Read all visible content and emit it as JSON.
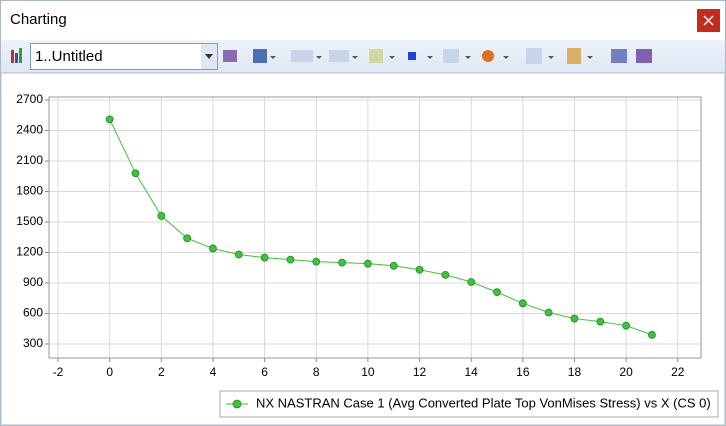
{
  "window": {
    "title": "Charting"
  },
  "toolbar": {
    "chart_selector": "1..Untitled"
  },
  "chart_data": {
    "type": "line",
    "x": [
      0,
      1,
      2,
      3,
      4,
      5,
      6,
      7,
      8,
      9,
      10,
      11,
      12,
      13,
      14,
      15,
      16,
      17,
      18,
      19,
      20,
      21
    ],
    "series": [
      {
        "name": "NX NASTRAN Case 1 (Avg Converted Plate Top VonMises Stress) vs X (CS 0)",
        "color": "#3cc43c",
        "values": [
          2510,
          1980,
          1560,
          1340,
          1240,
          1180,
          1150,
          1130,
          1110,
          1100,
          1090,
          1070,
          1030,
          980,
          910,
          810,
          700,
          610,
          550,
          520,
          480,
          390
        ]
      }
    ],
    "xlim": [
      -2.35,
      22.9
    ],
    "xticks": [
      -2,
      0,
      2,
      4,
      6,
      8,
      10,
      12,
      14,
      16,
      18,
      20,
      22
    ],
    "ylim": [
      162,
      2730
    ],
    "yticks": [
      300,
      600,
      900,
      1200,
      1500,
      1800,
      2100,
      2400,
      2700
    ],
    "grid": true,
    "legend": "bottom-right"
  }
}
